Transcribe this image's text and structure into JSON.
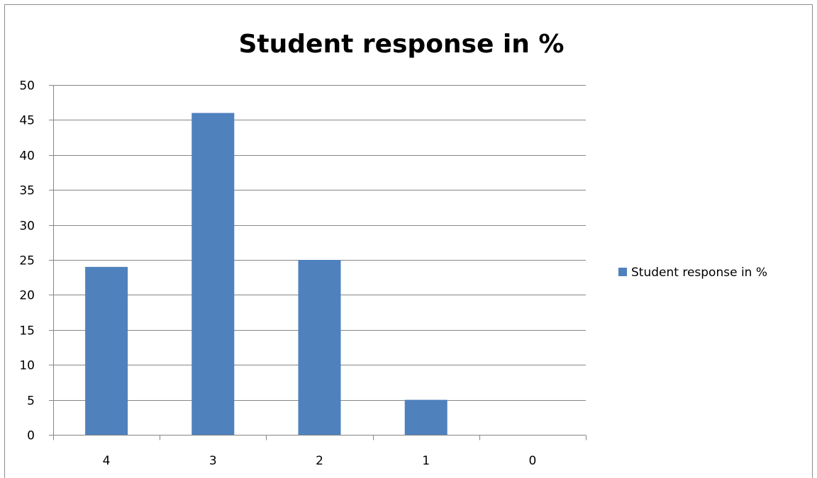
{
  "chart_data": {
    "type": "bar",
    "title": "Student response in %",
    "xlabel": "",
    "ylabel": "",
    "categories": [
      "4",
      "3",
      "2",
      "1",
      "0"
    ],
    "series": [
      {
        "name": "Student response in %",
        "values": [
          24,
          46,
          25,
          5,
          0
        ],
        "color": "#4f81bd"
      }
    ],
    "ylim": [
      0,
      50
    ],
    "yticks": [
      0,
      5,
      10,
      15,
      20,
      25,
      30,
      35,
      40,
      45,
      50
    ],
    "grid": true,
    "legend_position": "right"
  }
}
